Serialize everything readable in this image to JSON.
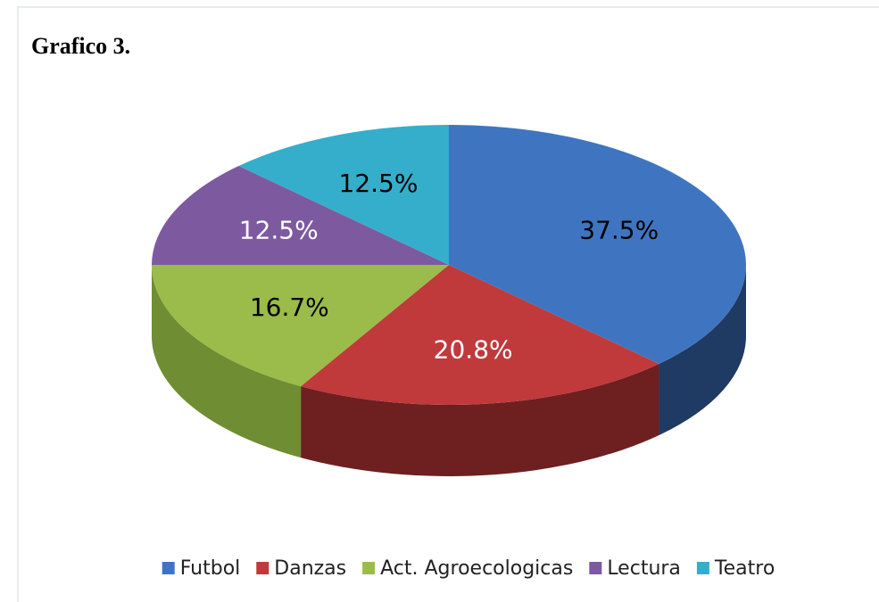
{
  "chart_data": {
    "type": "pie3d",
    "title": "Grafico 3.",
    "categories": [
      "Futbol",
      "Danzas",
      "Act. Agroecologicas",
      "Lectura",
      "Teatro"
    ],
    "values": [
      37.5,
      20.8,
      16.7,
      12.5,
      12.5
    ],
    "value_labels": [
      "37.5%",
      "20.8%",
      "16.7%",
      "12.5%",
      "12.5%"
    ],
    "colors": [
      "#3f75c0",
      "#c0393b",
      "#9bbb4a",
      "#7d5aa0",
      "#35aecb"
    ],
    "side_colors": [
      "#1f3a63",
      "#6e1f1f",
      "#6f8d32",
      "#55397a",
      "#237d94"
    ],
    "value_label_colors": [
      "#000000",
      "#ffffff",
      "#000000",
      "#ffffff",
      "#000000"
    ],
    "legend": "bottom"
  }
}
